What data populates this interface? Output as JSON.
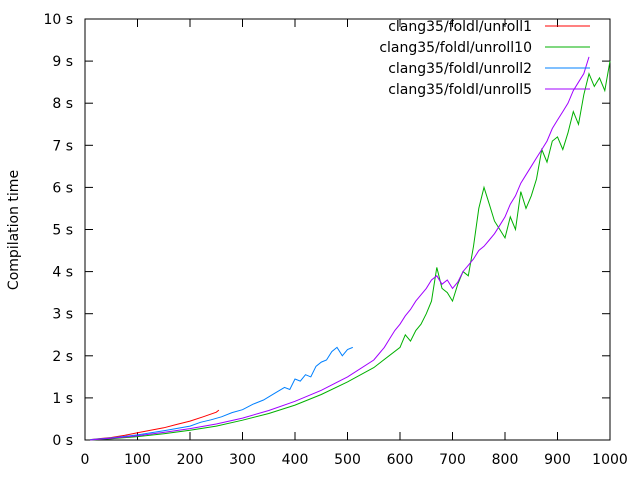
{
  "chart_data": {
    "type": "line",
    "title": "",
    "xlabel": "",
    "ylabel": "Compilation time",
    "xlim": [
      0,
      1000
    ],
    "ylim": [
      0,
      10
    ],
    "xticks": [
      0,
      100,
      200,
      300,
      400,
      500,
      600,
      700,
      800,
      900,
      1000
    ],
    "yticks": [
      0,
      1,
      2,
      3,
      4,
      5,
      6,
      7,
      8,
      9,
      10
    ],
    "ytick_labels": [
      "0 s",
      "1 s",
      "2 s",
      "3 s",
      "4 s",
      "5 s",
      "6 s",
      "7 s",
      "8 s",
      "9 s",
      "10 s"
    ],
    "grid": false,
    "legend_position": "top-right",
    "series": [
      {
        "name": "clang35/foldl/unroll1",
        "color": "#ff0000",
        "x": [
          10,
          25,
          50,
          75,
          100,
          125,
          150,
          175,
          200,
          225,
          250,
          255
        ],
        "y": [
          0.01,
          0.03,
          0.06,
          0.11,
          0.17,
          0.23,
          0.29,
          0.37,
          0.45,
          0.55,
          0.66,
          0.71
        ]
      },
      {
        "name": "clang35/foldl/unroll10",
        "color": "#00b000",
        "x": [
          10,
          50,
          100,
          150,
          200,
          250,
          300,
          350,
          400,
          450,
          500,
          550,
          600,
          610,
          620,
          630,
          640,
          650,
          660,
          670,
          680,
          690,
          700,
          710,
          720,
          730,
          740,
          750,
          760,
          770,
          780,
          790,
          800,
          810,
          820,
          830,
          840,
          850,
          860,
          870,
          880,
          890,
          900,
          910,
          920,
          930,
          940,
          950,
          960,
          970,
          980,
          990,
          1000
        ],
        "y": [
          0.0,
          0.03,
          0.08,
          0.15,
          0.23,
          0.33,
          0.47,
          0.63,
          0.83,
          1.08,
          1.38,
          1.72,
          2.2,
          2.5,
          2.35,
          2.6,
          2.75,
          3.0,
          3.3,
          4.1,
          3.6,
          3.5,
          3.3,
          3.7,
          4.0,
          3.9,
          4.6,
          5.5,
          6.0,
          5.6,
          5.2,
          5.0,
          4.8,
          5.3,
          5.0,
          5.9,
          5.5,
          5.8,
          6.2,
          6.9,
          6.6,
          7.1,
          7.2,
          6.9,
          7.3,
          7.8,
          7.5,
          8.2,
          8.7,
          8.4,
          8.6,
          8.3,
          9.0
        ]
      },
      {
        "name": "clang35/foldl/unroll2",
        "color": "#0080ff",
        "x": [
          10,
          50,
          100,
          150,
          200,
          220,
          240,
          260,
          280,
          300,
          320,
          340,
          360,
          380,
          390,
          400,
          410,
          420,
          430,
          440,
          450,
          460,
          470,
          480,
          490,
          500,
          510
        ],
        "y": [
          0.01,
          0.05,
          0.12,
          0.22,
          0.33,
          0.42,
          0.48,
          0.55,
          0.65,
          0.72,
          0.85,
          0.95,
          1.1,
          1.25,
          1.2,
          1.45,
          1.4,
          1.55,
          1.5,
          1.75,
          1.85,
          1.9,
          2.1,
          2.2,
          2.0,
          2.15,
          2.2
        ]
      },
      {
        "name": "clang35/foldl/unroll5",
        "color": "#a000ff",
        "x": [
          10,
          50,
          100,
          150,
          200,
          250,
          300,
          350,
          400,
          450,
          500,
          550,
          570,
          580,
          590,
          600,
          610,
          620,
          630,
          640,
          650,
          660,
          670,
          680,
          690,
          700,
          710,
          720,
          730,
          740,
          750,
          760,
          770,
          780,
          790,
          800,
          810,
          820,
          830,
          840,
          850,
          860,
          870,
          880,
          890,
          900,
          910,
          920,
          930,
          940,
          950,
          960
        ],
        "y": [
          0.0,
          0.04,
          0.1,
          0.18,
          0.27,
          0.38,
          0.52,
          0.7,
          0.92,
          1.18,
          1.5,
          1.9,
          2.2,
          2.4,
          2.6,
          2.75,
          2.95,
          3.1,
          3.3,
          3.45,
          3.6,
          3.8,
          3.9,
          3.7,
          3.8,
          3.6,
          3.75,
          4.0,
          4.15,
          4.3,
          4.5,
          4.6,
          4.75,
          4.9,
          5.1,
          5.3,
          5.6,
          5.8,
          6.1,
          6.3,
          6.5,
          6.7,
          6.9,
          7.1,
          7.4,
          7.6,
          7.8,
          8.0,
          8.3,
          8.5,
          8.7,
          9.1
        ]
      }
    ]
  }
}
